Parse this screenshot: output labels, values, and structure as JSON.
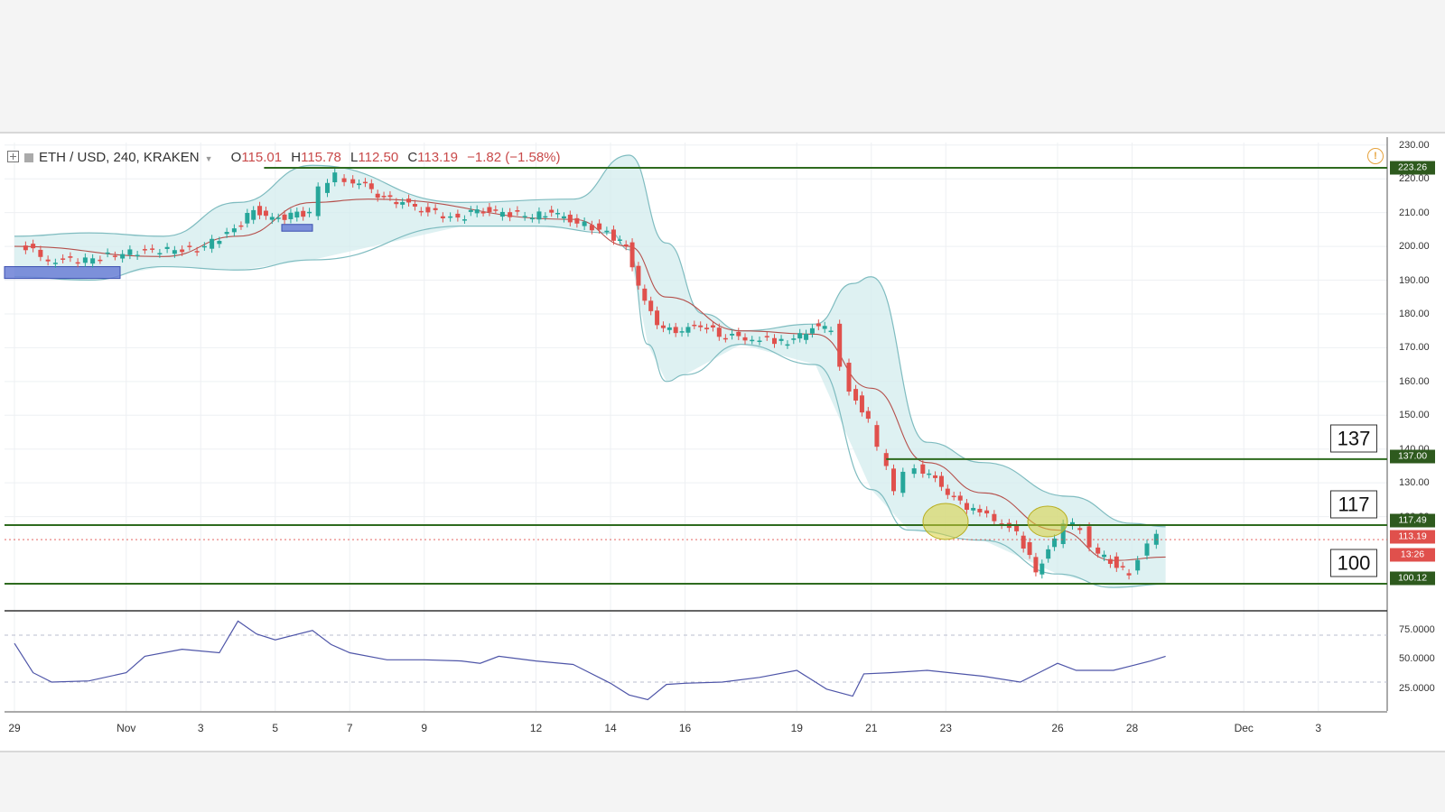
{
  "header": {
    "symbol": "ETH / USD, 240, KRAKEN",
    "open_label": "O",
    "open": "115.01",
    "high_label": "H",
    "high": "115.78",
    "low_label": "L",
    "low": "112.50",
    "close_label": "C",
    "close": "113.19",
    "change": "−1.82 (−1.58%)",
    "alert_icon": "!"
  },
  "y_axis_ticks": [
    "230.00",
    "220.00",
    "210.00",
    "200.00",
    "190.00",
    "180.00",
    "170.00",
    "160.00",
    "150.00",
    "140.00",
    "130.00",
    "120.00"
  ],
  "rsi_ticks": [
    "75.0000",
    "50.0000",
    "25.0000"
  ],
  "x_axis_ticks": [
    "29",
    "Nov",
    "3",
    "5",
    "7",
    "9",
    "12",
    "14",
    "16",
    "19",
    "21",
    "23",
    "26",
    "28",
    "Dec",
    "3"
  ],
  "price_badges": {
    "r223": "223.26",
    "r137": "137.00",
    "r117": "117.49",
    "last": "113.19",
    "countdown": "13:26",
    "s100": "100.12"
  },
  "level_boxes": {
    "r137": "137",
    "r117": "117",
    "s100": "100"
  },
  "colors": {
    "up": "#26a69a",
    "down": "#e0504c",
    "line": "#2e6b1f",
    "band_fill": "#d3ecee",
    "band_line": "#7fbcc0",
    "ma": "#b5504c",
    "rsi": "#4e55a8",
    "zone": "#6b7fd6",
    "ellipse": "#d8cf3c"
  },
  "chart_data": {
    "type": "candlestick",
    "symbol": "ETH / USD, 240, KRAKEN",
    "x_range": [
      "Oct 29",
      "Dec 4"
    ],
    "ylim": [
      95,
      232
    ],
    "close": [
      [
        29.2,
        201
      ],
      [
        30,
        196
      ],
      [
        31,
        196
      ],
      [
        32,
        198
      ],
      [
        33,
        199
      ],
      [
        34,
        199
      ],
      [
        35,
        205
      ],
      [
        35.5,
        211
      ],
      [
        36,
        208
      ],
      [
        36.5,
        209
      ],
      [
        37,
        210
      ],
      [
        37.3,
        217
      ],
      [
        37.7,
        221
      ],
      [
        38,
        220
      ],
      [
        38.5,
        218
      ],
      [
        39,
        214
      ],
      [
        39.5,
        213
      ],
      [
        40,
        211
      ],
      [
        41,
        208
      ],
      [
        41.5,
        211
      ],
      [
        42,
        210
      ],
      [
        43,
        209
      ],
      [
        43.5,
        210
      ],
      [
        44,
        208
      ],
      [
        45,
        204
      ],
      [
        45.5,
        200
      ],
      [
        46,
        183
      ],
      [
        46.5,
        175
      ],
      [
        47,
        175
      ],
      [
        47.5,
        177
      ],
      [
        48,
        174
      ],
      [
        48.7,
        173
      ],
      [
        49.5,
        172
      ],
      [
        50,
        172
      ],
      [
        50.5,
        176
      ],
      [
        51,
        176
      ],
      [
        51.3,
        165
      ],
      [
        51.5,
        158
      ],
      [
        52,
        148
      ],
      [
        52.3,
        140
      ],
      [
        52.7,
        128
      ],
      [
        53,
        133
      ],
      [
        53.3,
        135
      ],
      [
        53.8,
        131
      ],
      [
        54.3,
        125
      ],
      [
        55,
        121
      ],
      [
        55.6,
        118
      ],
      [
        56,
        115
      ],
      [
        56.5,
        104
      ],
      [
        57,
        113
      ],
      [
        57.3,
        118
      ],
      [
        57.7,
        117
      ],
      [
        58,
        110
      ],
      [
        58.5,
        107
      ],
      [
        59,
        103
      ],
      [
        59.3,
        108
      ],
      [
        59.5,
        112
      ],
      [
        59.8,
        114
      ]
    ],
    "levels": [
      223.26,
      137.0,
      117.49,
      100.12
    ],
    "last_price": 113.19,
    "bollinger_upper": [
      [
        29,
        203
      ],
      [
        31,
        204
      ],
      [
        33,
        203
      ],
      [
        35,
        213
      ],
      [
        37,
        224
      ],
      [
        41,
        213
      ],
      [
        44,
        214
      ],
      [
        45.5,
        227
      ],
      [
        46.5,
        201
      ],
      [
        47.5,
        180
      ],
      [
        48.5,
        175
      ],
      [
        50.5,
        177
      ],
      [
        51.5,
        189
      ],
      [
        52,
        191
      ],
      [
        53.5,
        142
      ],
      [
        55,
        136
      ],
      [
        57.3,
        126
      ],
      [
        59,
        118
      ],
      [
        59.9,
        117
      ]
    ],
    "bollinger_lower": [
      [
        29,
        191
      ],
      [
        31,
        190
      ],
      [
        33,
        194
      ],
      [
        35,
        193
      ],
      [
        37,
        196
      ],
      [
        41,
        206
      ],
      [
        43,
        206
      ],
      [
        45,
        204
      ],
      [
        45.5,
        199
      ],
      [
        46,
        171
      ],
      [
        46.5,
        160
      ],
      [
        47,
        162
      ],
      [
        48.5,
        171
      ],
      [
        50.5,
        165
      ],
      [
        52,
        128
      ],
      [
        53,
        116
      ],
      [
        55,
        113
      ],
      [
        57,
        103
      ],
      [
        58.5,
        99
      ],
      [
        59.9,
        100
      ]
    ],
    "moving_average": [
      [
        29,
        200
      ],
      [
        33,
        197
      ],
      [
        35,
        203
      ],
      [
        37,
        213
      ],
      [
        38.5,
        214
      ],
      [
        44,
        208
      ],
      [
        45.5,
        200
      ],
      [
        46.5,
        185
      ],
      [
        48.5,
        175
      ],
      [
        50.5,
        174
      ],
      [
        52,
        158
      ],
      [
        53.5,
        136
      ],
      [
        55,
        127
      ],
      [
        57,
        116
      ],
      [
        58.5,
        107
      ],
      [
        59.9,
        108
      ]
    ],
    "rsi": {
      "ylim": [
        0,
        100
      ],
      "guides": [
        70,
        30
      ],
      "values": [
        [
          29,
          63
        ],
        [
          29.5,
          38
        ],
        [
          30,
          30
        ],
        [
          31,
          31
        ],
        [
          32,
          38
        ],
        [
          32.5,
          52
        ],
        [
          33.5,
          58
        ],
        [
          34.5,
          55
        ],
        [
          35,
          82
        ],
        [
          35.5,
          71
        ],
        [
          36,
          66
        ],
        [
          37,
          74
        ],
        [
          37.5,
          62
        ],
        [
          38,
          55
        ],
        [
          39,
          49
        ],
        [
          40,
          49
        ],
        [
          41,
          48
        ],
        [
          41.5,
          46
        ],
        [
          42,
          52
        ],
        [
          43,
          48
        ],
        [
          44,
          45
        ],
        [
          45,
          29
        ],
        [
          45.5,
          19
        ],
        [
          46,
          15
        ],
        [
          46.5,
          28
        ],
        [
          47,
          29
        ],
        [
          48,
          30
        ],
        [
          49,
          34
        ],
        [
          50,
          40
        ],
        [
          50.3,
          34
        ],
        [
          50.8,
          24
        ],
        [
          51.5,
          18
        ],
        [
          51.8,
          37
        ],
        [
          52.5,
          38
        ],
        [
          53.5,
          40
        ],
        [
          55,
          35
        ],
        [
          56,
          30
        ],
        [
          56.5,
          38
        ],
        [
          57,
          46
        ],
        [
          57.5,
          40
        ],
        [
          58.5,
          40
        ],
        [
          59,
          44
        ],
        [
          59.5,
          48
        ],
        [
          59.9,
          52
        ]
      ]
    }
  }
}
